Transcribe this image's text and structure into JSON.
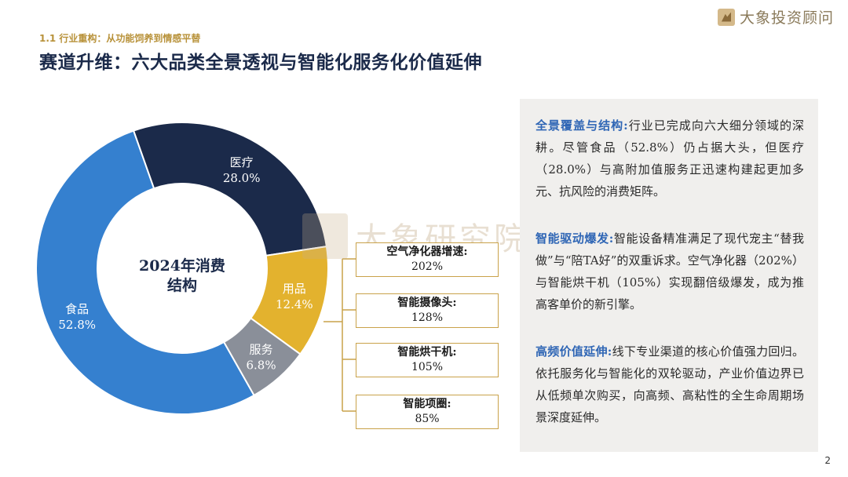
{
  "header": {
    "subtitle": "1.1 行业重构：从功能饲养到情感平替",
    "title": "赛道升维：六大品类全景透视与智能化服务化价值延伸",
    "logo_text": "大象投资顾问"
  },
  "watermark": {
    "text": "大象研究院"
  },
  "chart_data": {
    "type": "pie",
    "title": "2024年消费结构",
    "center_label_lines": [
      "2024年消费",
      "结构"
    ],
    "slices": [
      {
        "name": "食品",
        "value": 52.8,
        "label": "52.8%",
        "color": "#3580cf"
      },
      {
        "name": "医疗",
        "value": 28.0,
        "label": "28.0%",
        "color": "#1b2a4a"
      },
      {
        "name": "用品",
        "value": 12.4,
        "label": "12.4%",
        "color": "#e3b22e"
      },
      {
        "name": "服务",
        "value": 6.8,
        "label": "6.8%",
        "color": "#8a8f99"
      }
    ],
    "callout_from": "用品",
    "growth": [
      {
        "name": "空气净化器增速:",
        "value": "202%"
      },
      {
        "name": "智能摄像头:",
        "value": "128%"
      },
      {
        "name": "智能烘干机:",
        "value": "105%"
      },
      {
        "name": "智能项圈:",
        "value": "85%"
      }
    ]
  },
  "panel": {
    "paragraphs": [
      {
        "head": "全景覆盖与结构:",
        "body": "行业已完成向六大细分领域的深耕。尽管食品（52.8%）仍占据大头，但医疗（28.0%）与高附加值服务正迅速构建起更加多元、抗风险的消费矩阵。"
      },
      {
        "head": "智能驱动爆发:",
        "body": "智能设备精准满足了现代宠主“替我做”与“陪TA好”的双重诉求。空气净化器（202%）与智能烘干机（105%）实现翻倍级爆发，成为推高客单价的新引擎。"
      },
      {
        "head": "高频价值延伸:",
        "body": "线下专业渠道的核心价值强力回归。依托服务化与智能化的双轮驱动，产业价值边界已从低频单次购买，向高频、高粘性的全生命周期场景深度延伸。"
      }
    ]
  },
  "page_number": "2"
}
